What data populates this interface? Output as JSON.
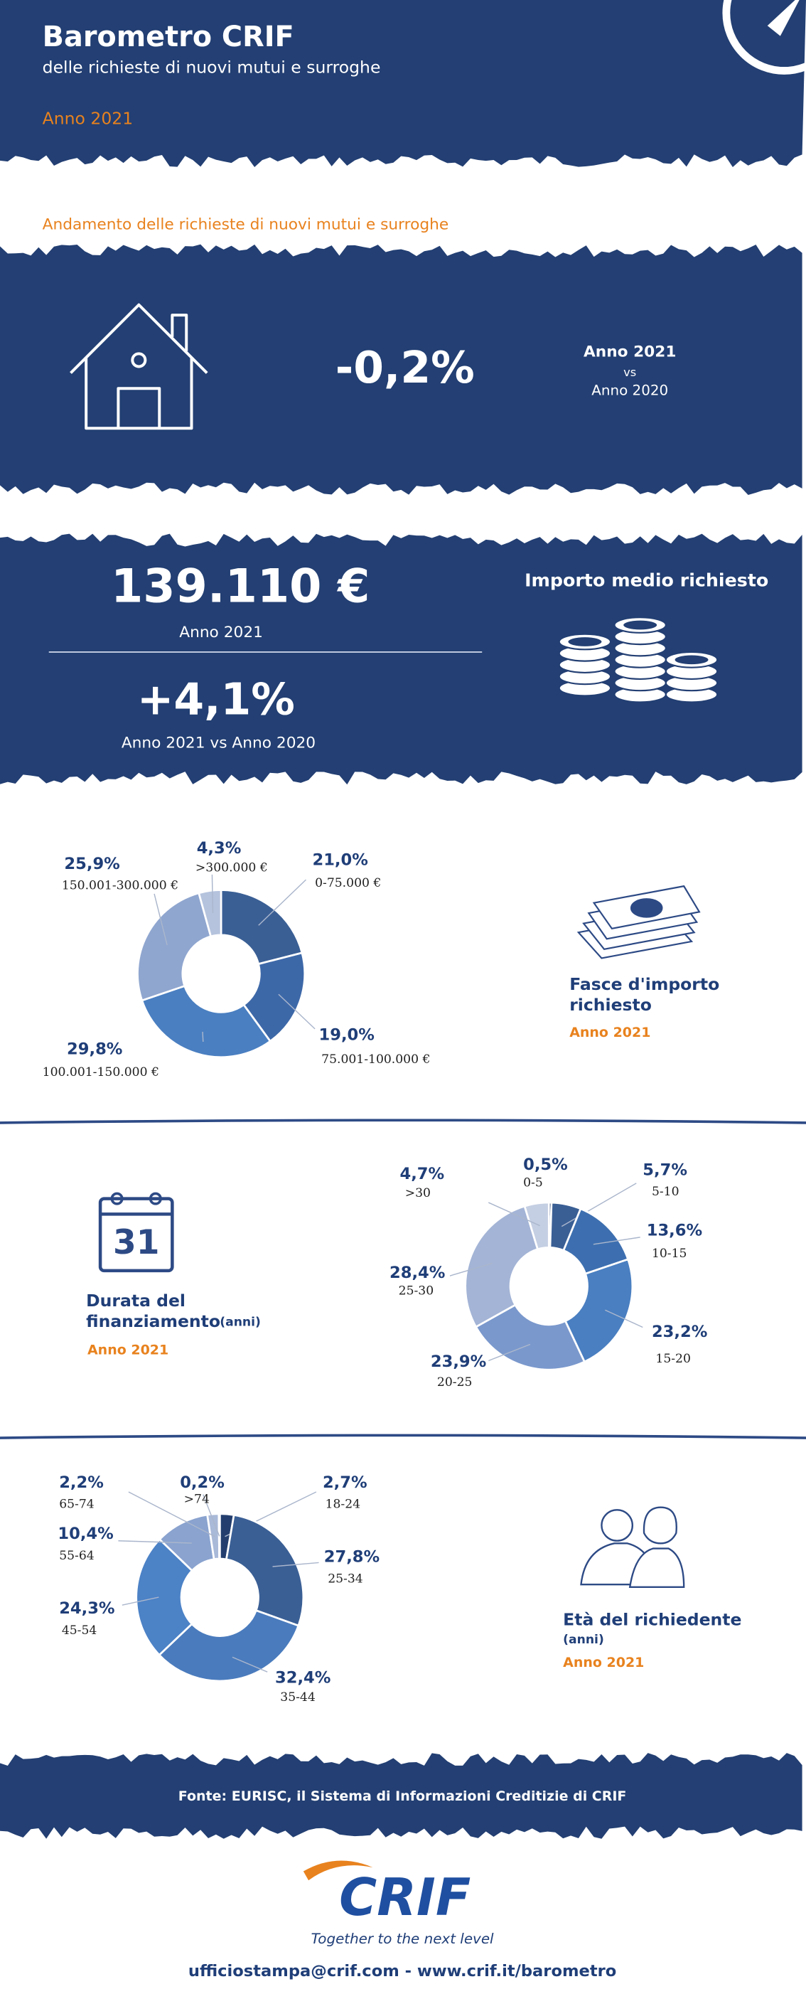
{
  "header": {
    "title": "Barometro CRIF",
    "subtitle": "delle richieste di nuovi mutui e surroghe",
    "year": "Anno 2021"
  },
  "requests": {
    "heading": "Andamento delle richieste di nuovi mutui e surroghe",
    "change": "-0,2%",
    "compare": [
      "Anno 2021",
      "vs",
      "Anno 2020"
    ]
  },
  "amount": {
    "title": "Importo medio richiesto",
    "value": "139.110 €",
    "year": "Anno 2021",
    "change": "+4,1%",
    "change_label": "Anno 2021 vs Anno 2020"
  },
  "calendar_day": "31",
  "chart_data": [
    {
      "type": "pie",
      "title": [
        "Fasce d'importo",
        "richiesto"
      ],
      "subtitle": "Anno 2021",
      "categories": [
        "0-75.000 €",
        "75.001-100.000  €",
        "100.001-150.000 €",
        "150.001-300.000 €",
        ">300.000 €"
      ],
      "values": [
        21.0,
        19.0,
        29.8,
        25.9,
        4.3
      ],
      "value_labels": [
        "21,0%",
        "19,0%",
        "29,8%",
        "25,9%",
        "4,3%"
      ],
      "colors": [
        "#3a5f95",
        "#3d68a8",
        "#4a7fc1",
        "#8fa6cf",
        "#b5c3dd"
      ]
    },
    {
      "type": "pie",
      "title": [
        "Durata del",
        "finanziamento"
      ],
      "unit": "(anni)",
      "subtitle": "Anno 2021",
      "categories": [
        "0-5",
        "5-10",
        "10-15",
        "15-20",
        "20-25",
        "25-30",
        ">30"
      ],
      "values": [
        0.5,
        5.7,
        13.6,
        23.2,
        23.9,
        28.4,
        4.7
      ],
      "value_labels": [
        "0,5%",
        "5,7%",
        "13,6%",
        "23,2%",
        "23,9%",
        "28,4%",
        "4,7%"
      ],
      "colors": [
        "#233e6e",
        "#3a5f95",
        "#3d6fb0",
        "#4a7fc1",
        "#7a98cc",
        "#a3b4d6",
        "#c5cfe3"
      ]
    },
    {
      "type": "pie",
      "title": [
        "Età del richiedente"
      ],
      "unit": "(anni)",
      "subtitle": "Anno 2021",
      "categories": [
        "18-24",
        "25-34",
        "35-44",
        "45-54",
        "55-64",
        "65-74",
        ">74"
      ],
      "values": [
        2.7,
        27.8,
        32.4,
        24.3,
        10.4,
        2.2,
        0.2
      ],
      "value_labels": [
        "2,7%",
        "27,8%",
        "32,4%",
        "24,3%",
        "10,4%",
        "2,2%",
        "0,2%"
      ],
      "colors": [
        "#233e6e",
        "#3a5f95",
        "#4a7bbd",
        "#4c82c6",
        "#8aa3cf",
        "#a9b9d8",
        "#c8d1e4"
      ]
    }
  ],
  "footer": {
    "source": "Fonte: EURISC, il Sistema di Informazioni Creditizie di CRIF",
    "logo": "CRIF",
    "tagline": "Together to the next level",
    "contacts": "ufficiostampa@crif.com - www.crif.it/barometro"
  }
}
